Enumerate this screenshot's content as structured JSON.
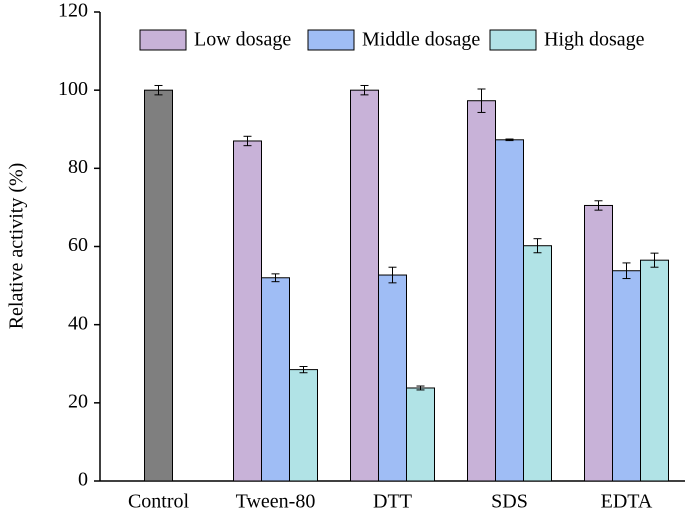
{
  "chart_data": {
    "type": "bar",
    "ylabel": "Relative activity (%)",
    "categories": [
      "Control",
      "Tween-80",
      "DTT",
      "SDS",
      "EDTA"
    ],
    "control": {
      "value": 100,
      "error": 1.2,
      "color": "#7f7f7f"
    },
    "series": [
      {
        "name": "Low dosage",
        "color": "#c8b2d8",
        "values": [
          null,
          87,
          100,
          97.3,
          70.5
        ],
        "errors": [
          null,
          1.2,
          1.2,
          3,
          1.2
        ]
      },
      {
        "name": "Middle dosage",
        "color": "#9fbdf5",
        "values": [
          null,
          52,
          52.7,
          87.3,
          53.8
        ],
        "errors": [
          null,
          1,
          2,
          0.2,
          2
        ]
      },
      {
        "name": "High dosage",
        "color": "#b1e3e6",
        "values": [
          null,
          28.5,
          23.8,
          60.2,
          56.5
        ],
        "errors": [
          null,
          0.8,
          0.5,
          1.8,
          1.8
        ]
      }
    ],
    "ylim": [
      0,
      120
    ],
    "yticks": [
      0,
      20,
      40,
      60,
      80,
      100,
      120
    ],
    "legend": "top"
  }
}
